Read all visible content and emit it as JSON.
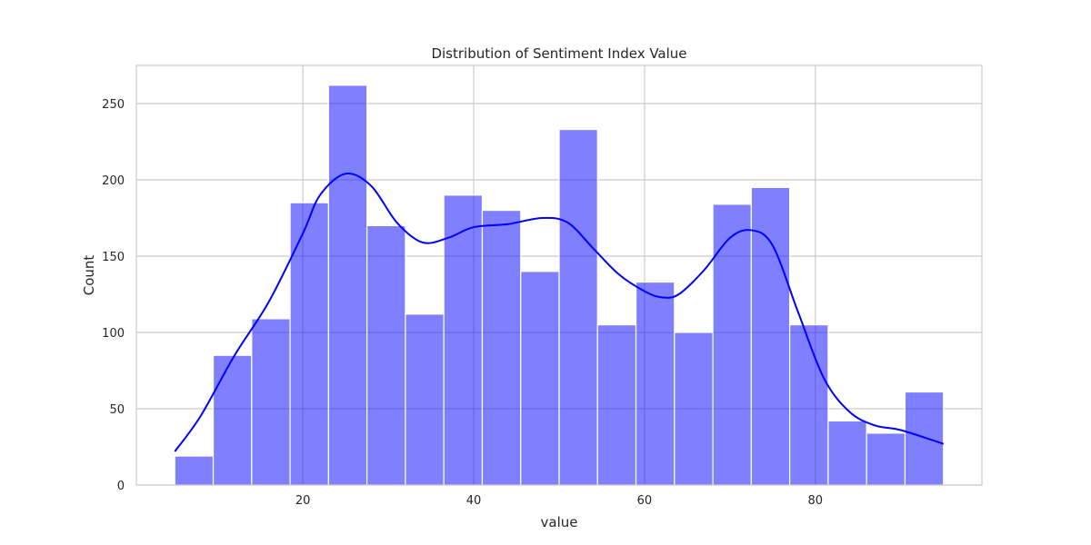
{
  "chart_data": {
    "type": "bar",
    "title": "Distribution of Sentiment Index Value",
    "xlabel": "value",
    "ylabel": "Count",
    "xlim": [
      0.5,
      99.5
    ],
    "ylim": [
      0,
      275
    ],
    "xticks": [
      20,
      40,
      60,
      80
    ],
    "yticks": [
      0,
      50,
      100,
      150,
      200,
      250
    ],
    "grid": true,
    "bar_color": "#0000ff",
    "bar_opacity": 0.5,
    "kde_color": "#0000ff",
    "bins": [
      {
        "start": 5.0,
        "end": 9.5,
        "count": 19
      },
      {
        "start": 9.5,
        "end": 14.0,
        "count": 85
      },
      {
        "start": 14.0,
        "end": 18.5,
        "count": 109
      },
      {
        "start": 18.5,
        "end": 23.0,
        "count": 185
      },
      {
        "start": 23.0,
        "end": 27.5,
        "count": 262
      },
      {
        "start": 27.5,
        "end": 32.0,
        "count": 170
      },
      {
        "start": 32.0,
        "end": 36.5,
        "count": 112
      },
      {
        "start": 36.5,
        "end": 41.0,
        "count": 190
      },
      {
        "start": 41.0,
        "end": 45.5,
        "count": 180
      },
      {
        "start": 45.5,
        "end": 50.0,
        "count": 140
      },
      {
        "start": 50.0,
        "end": 54.5,
        "count": 233
      },
      {
        "start": 54.5,
        "end": 59.0,
        "count": 105
      },
      {
        "start": 59.0,
        "end": 63.5,
        "count": 133
      },
      {
        "start": 63.5,
        "end": 68.0,
        "count": 100
      },
      {
        "start": 68.0,
        "end": 72.5,
        "count": 184
      },
      {
        "start": 72.5,
        "end": 77.0,
        "count": 195
      },
      {
        "start": 77.0,
        "end": 81.5,
        "count": 105
      },
      {
        "start": 81.5,
        "end": 86.0,
        "count": 42
      },
      {
        "start": 86.0,
        "end": 90.5,
        "count": 34
      },
      {
        "start": 90.5,
        "end": 95.0,
        "count": 61
      }
    ],
    "kde": {
      "x": [
        5,
        8,
        12,
        16,
        20,
        22,
        25,
        28,
        31,
        34,
        37,
        40,
        44,
        48,
        51,
        54,
        57,
        60,
        62,
        64,
        67,
        70,
        72.5,
        75,
        78,
        81,
        84,
        87,
        90,
        95
      ],
      "y": [
        22,
        45,
        85,
        120,
        165,
        190,
        204,
        196,
        172,
        159,
        162,
        169,
        171,
        175,
        172,
        155,
        138,
        127,
        123,
        125,
        141,
        162,
        167,
        157,
        113,
        70,
        48,
        39,
        36,
        27
      ]
    }
  }
}
